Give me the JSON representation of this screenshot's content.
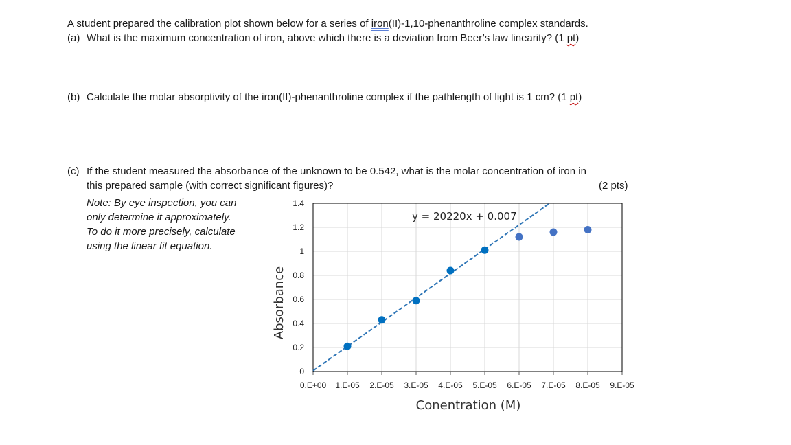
{
  "intro": {
    "pre": "A student prepared the calibration plot shown below for a series of ",
    "iron": "iron",
    "post": "(II)-1,10-phenanthroline complex standards."
  },
  "qa": {
    "label": "(a)",
    "text": "What is the maximum concentration of iron, above which there is a deviation from Beer’s law linearity?  (1 ",
    "pt": "pt",
    "close": ")"
  },
  "qb": {
    "label": "(b)",
    "text_pre": "Calculate the molar absorptivity of the ",
    "iron": "iron",
    "text_post": "(II)-phenanthroline complex if the pathlength of light is 1 cm? (1 ",
    "pt": "pt",
    "close": ")"
  },
  "qc": {
    "label": "(c)",
    "line1": "If the student measured the absorbance of the unknown to be 0.542, what is the molar concentration of iron in",
    "line2": "this prepared sample (with correct significant figures)?",
    "points": "(2 pts)"
  },
  "note": {
    "l1": "Note: By eye inspection, you can",
    "l2": "only determine it approximately.",
    "l3": "To do it more precisely, calculate",
    "l4": "using the linear fit equation."
  },
  "chart_data": {
    "type": "scatter",
    "xlabel": "Conentration (M)",
    "ylabel": "Absorbance",
    "xlim": [
      0,
      9e-05
    ],
    "ylim": [
      0,
      1.4
    ],
    "x_ticks": [
      "0.E+00",
      "1.E-05",
      "2.E-05",
      "3.E-05",
      "4.E-05",
      "5.E-05",
      "6.E-05",
      "7.E-05",
      "8.E-05",
      "9.E-05"
    ],
    "y_ticks": [
      "0",
      "0.2",
      "0.4",
      "0.6",
      "0.8",
      "1",
      "1.2",
      "1.4"
    ],
    "grid": true,
    "trendline": {
      "equation": "y = 20220x + 0.007",
      "slope": 20220,
      "intercept": 0.007,
      "style": "dashed",
      "color": "#2E75B6"
    },
    "series": [
      {
        "color": "#0070C0",
        "points": [
          [
            1e-05,
            0.21
          ],
          [
            2e-05,
            0.43
          ],
          [
            3e-05,
            0.59
          ],
          [
            4e-05,
            0.84
          ],
          [
            5e-05,
            1.01
          ]
        ]
      },
      {
        "color": "#4472C4",
        "points": [
          [
            6e-05,
            1.12
          ],
          [
            7e-05,
            1.16
          ],
          [
            8e-05,
            1.18
          ]
        ]
      }
    ]
  }
}
